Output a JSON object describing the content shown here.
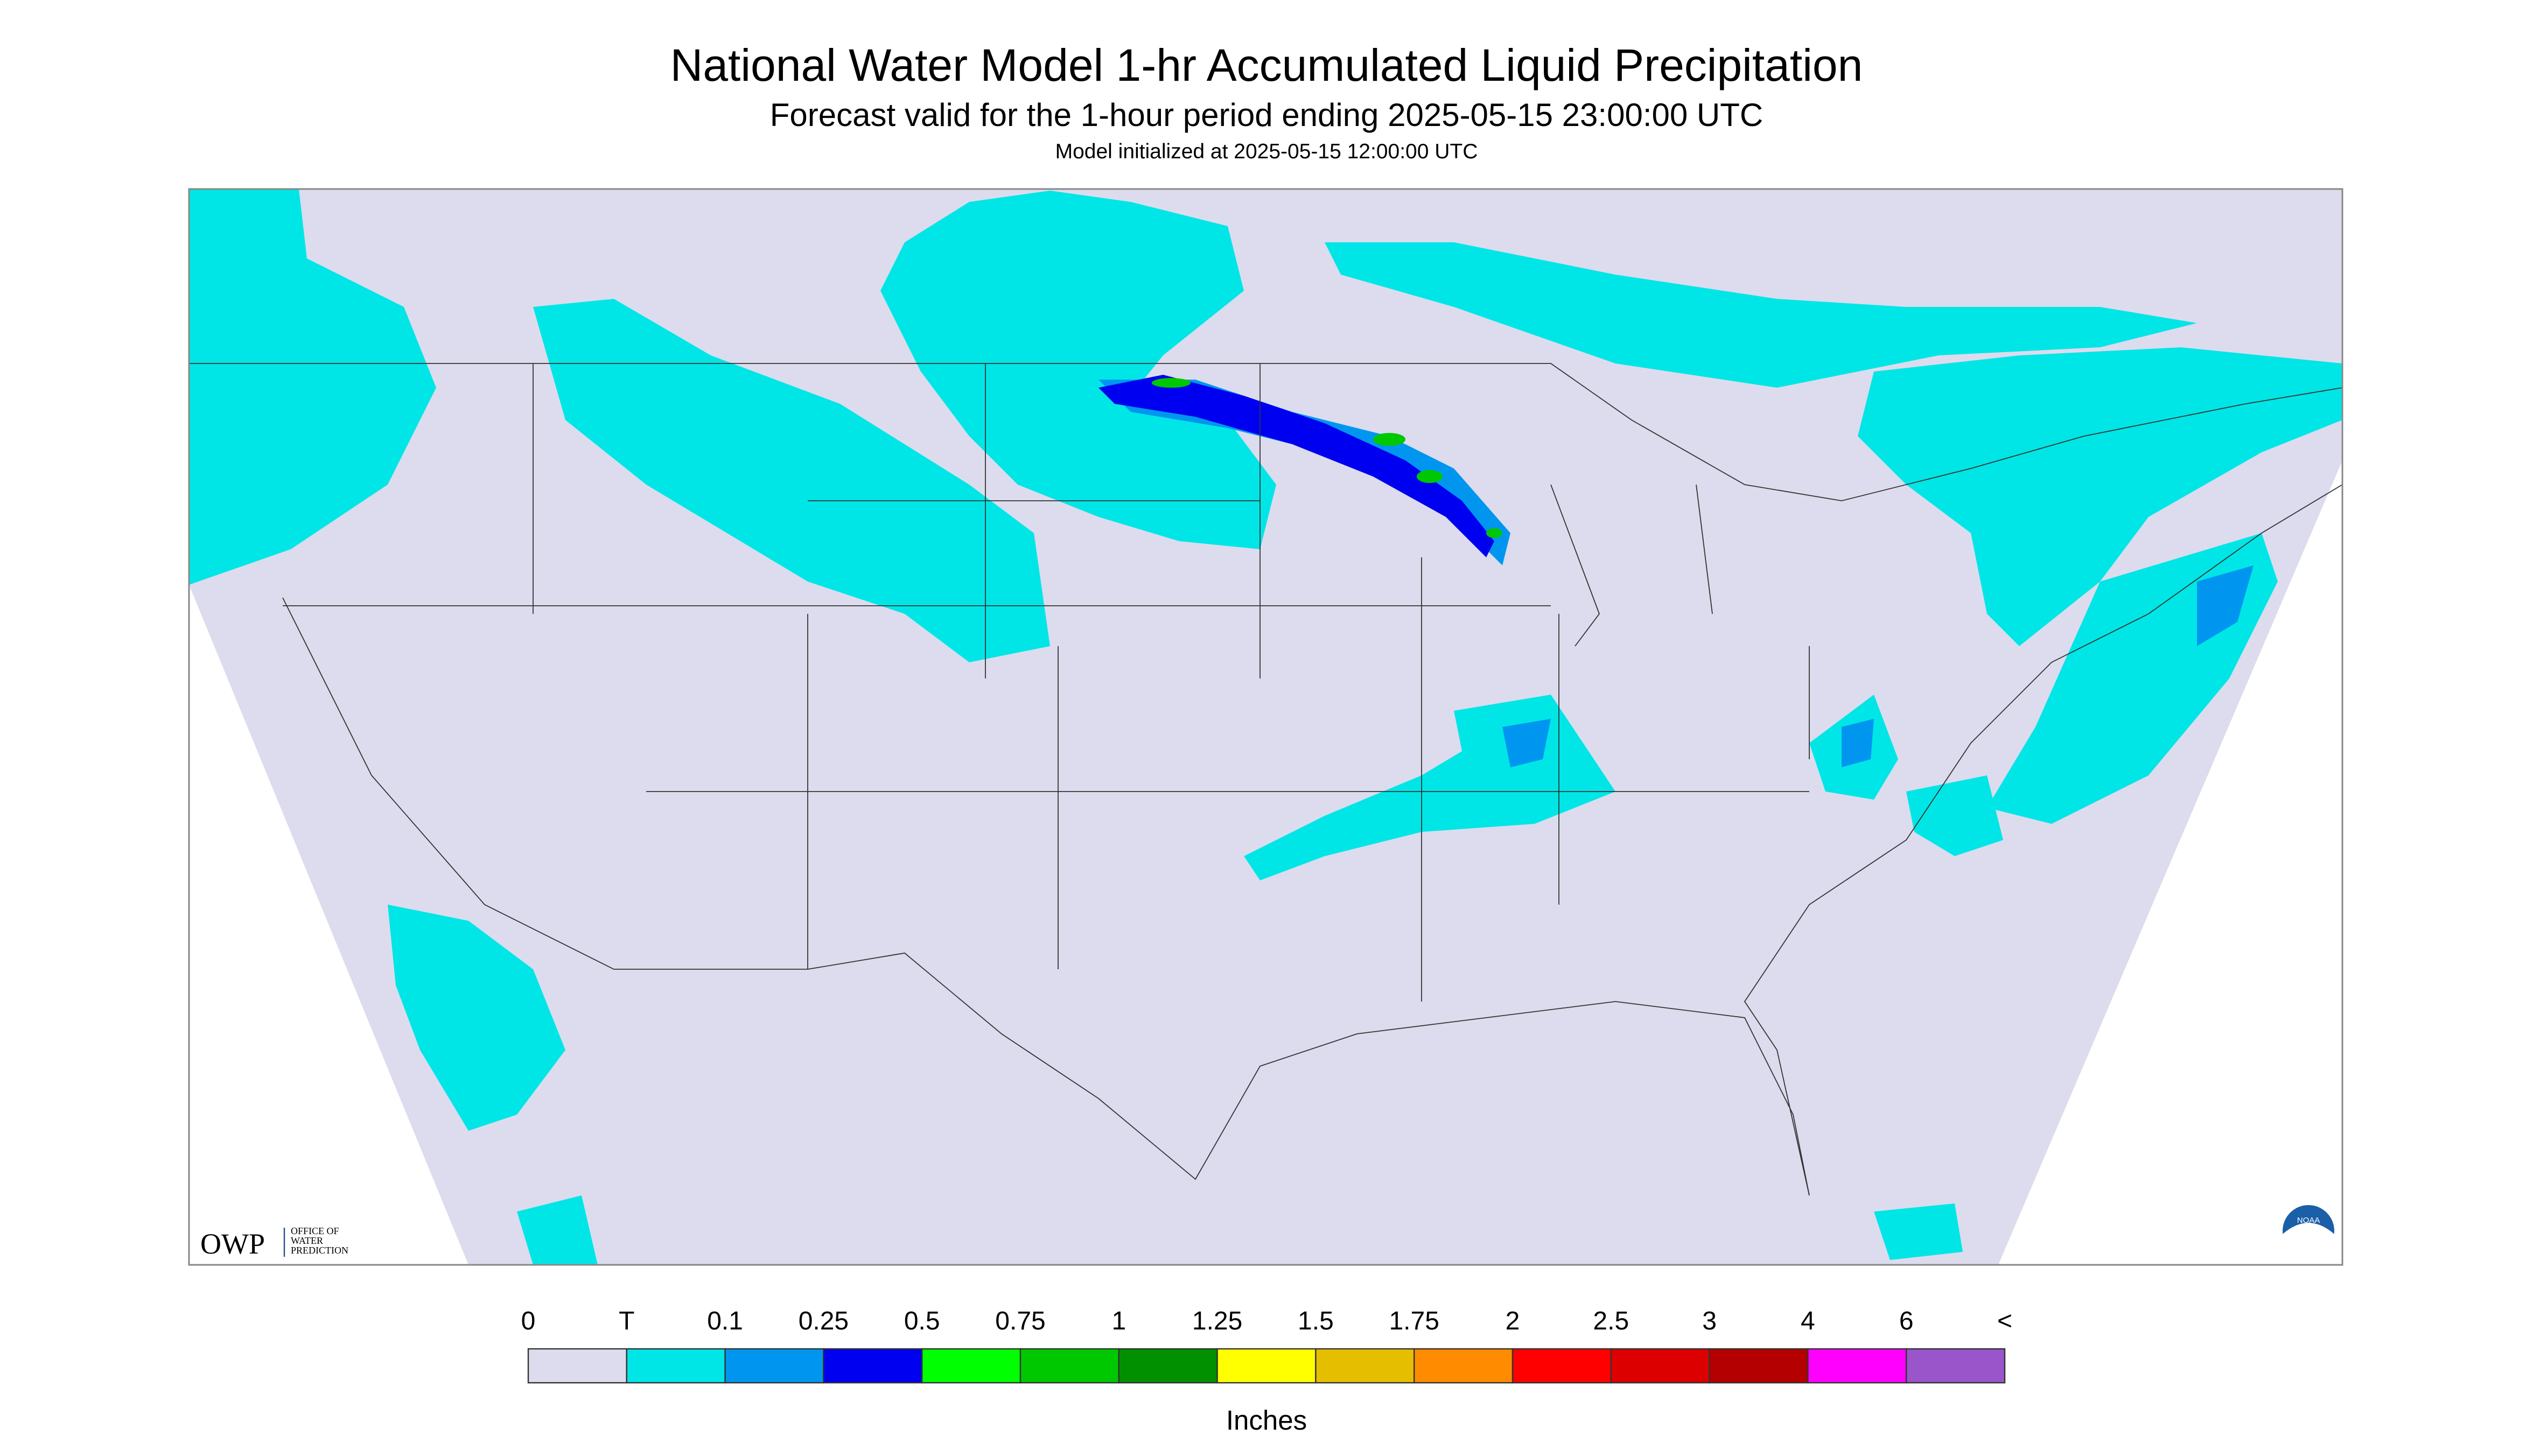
{
  "header": {
    "title": "National Water Model 1-hr Accumulated Liquid Precipitation",
    "subtitle": "Forecast valid for the 1-hour period ending 2025-05-15 23:00:00 UTC",
    "init": "Model initialized at 2025-05-15 12:00:00 UTC"
  },
  "logos": {
    "owp": "OWP",
    "owp_text": [
      "OFFICE OF",
      "WATER",
      "PREDICTION"
    ],
    "noaa": "NOAA"
  },
  "legend": {
    "levels": [
      "0",
      "T",
      "0.1",
      "0.25",
      "0.5",
      "0.75",
      "1",
      "1.25",
      "1.5",
      "1.75",
      "2",
      "2.5",
      "3",
      "4",
      "6",
      "<"
    ],
    "colors": [
      "#dcdcee",
      "#00e6e6",
      "#0096f0",
      "#0000f0",
      "#00ff00",
      "#00c800",
      "#009000",
      "#ffff00",
      "#e6be00",
      "#ff8c00",
      "#ff0000",
      "#dc0000",
      "#b40000",
      "#ff00ff",
      "#9955c9"
    ],
    "units": "Inches"
  }
}
